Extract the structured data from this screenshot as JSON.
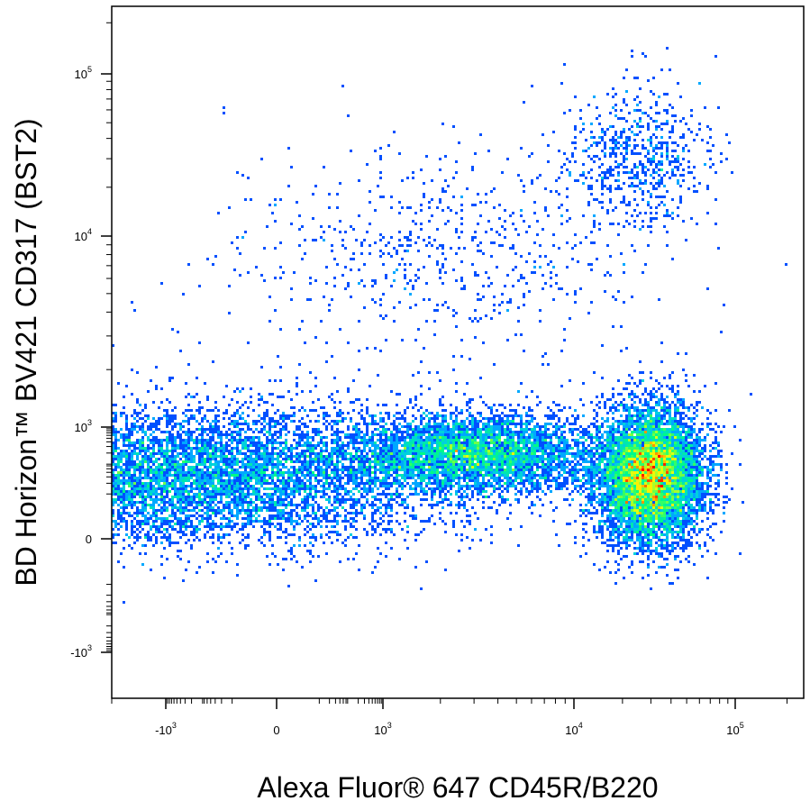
{
  "chart_data": {
    "type": "scatter",
    "xlabel": "Alexa Fluor® 647  CD45R/B220",
    "ylabel": "BD Horizon™ BV421  CD317  (BST2)",
    "x_scale": "biexponential (logicle)",
    "y_scale": "biexponential (logicle)",
    "xlim": [
      -2000,
      250000
    ],
    "ylim": [
      -1500,
      250000
    ],
    "x_ticks": [
      {
        "value": -1000,
        "label": "-10",
        "exp": "3"
      },
      {
        "value": 0,
        "label": "0",
        "exp": ""
      },
      {
        "value": 1000,
        "label": "10",
        "exp": "3"
      },
      {
        "value": 10000,
        "label": "10",
        "exp": "4"
      },
      {
        "value": 100000,
        "label": "10",
        "exp": "5"
      }
    ],
    "y_ticks": [
      {
        "value": -1000,
        "label": "-10",
        "exp": "3"
      },
      {
        "value": 0,
        "label": "0",
        "exp": ""
      },
      {
        "value": 1000,
        "label": "10",
        "exp": "3"
      },
      {
        "value": 10000,
        "label": "10",
        "exp": "4"
      },
      {
        "value": 100000,
        "label": "10",
        "exp": "5"
      }
    ],
    "density_colormap": [
      "#0000ff",
      "#00bfff",
      "#00ff7f",
      "#ffff00",
      "#ff0000"
    ],
    "populations": [
      {
        "x_center": -300,
        "y_center": 50,
        "x_spread": 350,
        "y_spread": 300,
        "weight": 0.4
      },
      {
        "x_center": 30000,
        "y_center": 50,
        "x_spread": 12000,
        "y_spread": 300,
        "weight": 0.34
      },
      {
        "x_center": 3000,
        "y_center": 200,
        "x_spread": 3500,
        "y_spread": 350,
        "weight": 0.2
      },
      {
        "x_center": 25000,
        "y_center": 30000,
        "x_spread": 15000,
        "y_spread": 18000,
        "weight": 0.03
      },
      {
        "x_center": 2000,
        "y_center": 8000,
        "x_spread": 6000,
        "y_spread": 9000,
        "weight": 0.03
      }
    ],
    "grid": false,
    "legend": "none"
  }
}
